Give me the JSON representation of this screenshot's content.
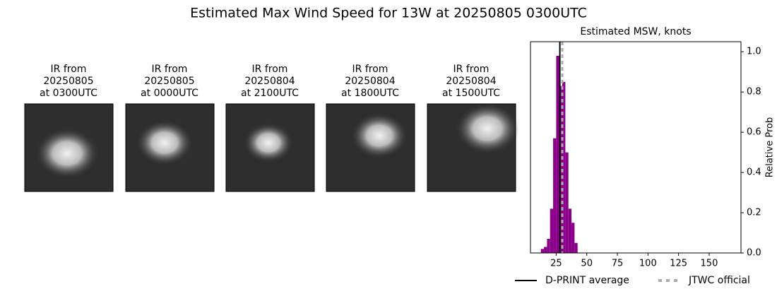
{
  "title": "Estimated Max Wind Speed for 13W at 20250805 0300UTC",
  "panels": [
    {
      "lines": [
        "IR from",
        "20250805",
        "at 0300UTC"
      ]
    },
    {
      "lines": [
        "IR from",
        "20250805",
        "at 0000UTC"
      ]
    },
    {
      "lines": [
        "IR from",
        "20250804",
        "at 2100UTC"
      ]
    },
    {
      "lines": [
        "IR from",
        "20250804",
        "at 1800UTC"
      ]
    },
    {
      "lines": [
        "IR from",
        "20250804",
        "at 1500UTC"
      ]
    }
  ],
  "chart_data": {
    "type": "histogram",
    "title": "Estimated MSW, knots",
    "y_label": "Relative Prob",
    "bins": [
      12.5,
      15,
      17.5,
      20,
      22.5,
      25,
      27.5,
      30,
      32.5,
      35,
      37.5,
      40,
      42.5
    ],
    "values": [
      0.02,
      0.03,
      0.07,
      0.22,
      0.57,
      0.98,
      0.83,
      0.85,
      0.5,
      0.22,
      0.15,
      0.05
    ],
    "color": "#8b008b",
    "xlim": [
      4,
      176
    ],
    "ylim": [
      0,
      1.05
    ],
    "xticks": [
      25,
      50,
      75,
      100,
      125,
      150
    ],
    "yticks": [
      {
        "value": 0,
        "label": "0.0"
      },
      {
        "value": 0.2,
        "label": "0.2"
      },
      {
        "value": 0.4,
        "label": "0.4"
      },
      {
        "value": 0.6,
        "label": "0.6"
      },
      {
        "value": 0.8,
        "label": "0.8"
      },
      {
        "value": 1.0,
        "label": "1.0"
      }
    ],
    "vlines": [
      {
        "name": "D-PRINT average",
        "value": 28,
        "color": "#000000",
        "style": "solid"
      },
      {
        "name": "JTWC official",
        "value": 30,
        "color": "#aaaaaa",
        "style": "dashed"
      }
    ]
  }
}
